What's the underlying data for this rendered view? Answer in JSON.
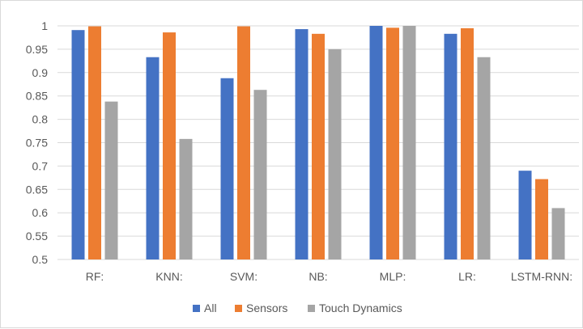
{
  "chart_data": {
    "type": "bar",
    "title": "",
    "xlabel": "",
    "ylabel": "",
    "categories": [
      "RF:",
      "KNN:",
      "SVM:",
      "NB:",
      "MLP:",
      "LR:",
      "LSTM-RNN:"
    ],
    "series": [
      {
        "name": "All",
        "color": "#4472c4",
        "values": [
          0.991,
          0.933,
          0.888,
          0.993,
          1.0,
          0.983,
          0.69
        ]
      },
      {
        "name": "Sensors",
        "color": "#ed7d31",
        "values": [
          0.999,
          0.986,
          0.999,
          0.983,
          0.996,
          0.995,
          0.672
        ]
      },
      {
        "name": "Touch Dynamics",
        "color": "#a5a5a5",
        "values": [
          0.838,
          0.758,
          0.863,
          0.95,
          1.0,
          0.933,
          0.61
        ]
      }
    ],
    "ylim": [
      0.5,
      1.0
    ],
    "yticks": [
      "0.5",
      "0.55",
      "0.6",
      "0.65",
      "0.7",
      "0.75",
      "0.8",
      "0.85",
      "0.9",
      "0.95",
      "1"
    ],
    "grid": true,
    "legend_position": "bottom"
  }
}
